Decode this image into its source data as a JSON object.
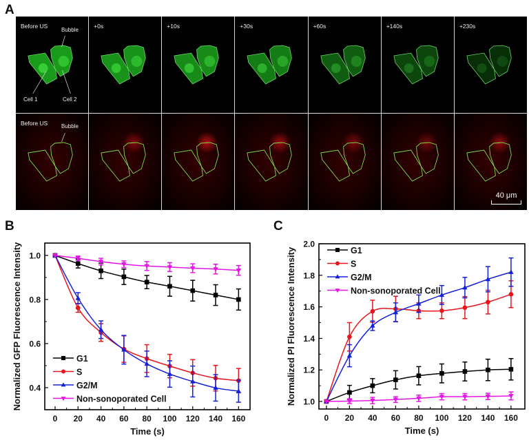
{
  "panel_a": {
    "letter": "A",
    "time_labels": [
      "Before US",
      "+0s",
      "+10s",
      "+30s",
      "+60s",
      "+140s",
      "+230s"
    ],
    "row2_first_label": "Before US",
    "annotations": {
      "bubble": "Bubble",
      "cell1": "Cell 1",
      "cell2": "Cell 2"
    },
    "scale_bar": "40 μm",
    "colors": {
      "gfp": "#22c022",
      "pi": "#c01010",
      "outline": "#7fdc4a"
    }
  },
  "chart_data": [
    {
      "panel": "B",
      "type": "line",
      "title": "",
      "xlabel": "Time (s)",
      "ylabel": "Normalized GFP Fluorescence Intensity",
      "x": [
        0,
        20,
        40,
        60,
        80,
        100,
        120,
        140,
        160
      ],
      "xticks": [
        "0",
        "20",
        "40",
        "60",
        "80",
        "100",
        "120",
        "140",
        "160"
      ],
      "yticks": [
        "0.4",
        "0.6",
        "0.8",
        "1.0"
      ],
      "xlim": [
        -9,
        170
      ],
      "ylim": [
        0.3,
        1.056
      ],
      "legend": "bottom-left",
      "grid": false,
      "series": [
        {
          "name": "G1",
          "color": "#000000",
          "marker": "square",
          "values": [
            1.0,
            0.963,
            0.93,
            0.903,
            0.879,
            0.86,
            0.84,
            0.82,
            0.8
          ],
          "errors": [
            0,
            0.02,
            0.035,
            0.035,
            0.03,
            0.045,
            0.047,
            0.047,
            0.048
          ]
        },
        {
          "name": "S",
          "color": "#e8141c",
          "marker": "circle",
          "values": [
            1.0,
            0.762,
            0.65,
            0.575,
            0.532,
            0.498,
            0.467,
            0.443,
            0.432
          ],
          "errors": [
            0,
            0.02,
            0.04,
            0.06,
            0.063,
            0.053,
            0.06,
            0.058,
            0.055
          ]
        },
        {
          "name": "G2/M",
          "color": "#1420d8",
          "marker": "triangle-up",
          "values": [
            1.0,
            0.806,
            0.663,
            0.572,
            0.508,
            0.462,
            0.428,
            0.399,
            0.384
          ],
          "errors": [
            0,
            0.025,
            0.04,
            0.065,
            0.058,
            0.06,
            0.07,
            0.06,
            0.05
          ]
        },
        {
          "name": "Non-sonoporated Cell",
          "color": "#e414e4",
          "marker": "triangle-down",
          "values": [
            1.0,
            0.987,
            0.972,
            0.96,
            0.952,
            0.947,
            0.942,
            0.938,
            0.932
          ],
          "errors": [
            0,
            0.01,
            0.015,
            0.015,
            0.02,
            0.02,
            0.02,
            0.022,
            0.022
          ]
        }
      ]
    },
    {
      "panel": "C",
      "type": "line",
      "title": "",
      "xlabel": "Time (s)",
      "ylabel": "Normalized PI Fluorescence Intensity",
      "x": [
        0,
        20,
        40,
        60,
        80,
        100,
        120,
        140,
        160
      ],
      "xticks": [
        "0",
        "20",
        "40",
        "60",
        "80",
        "100",
        "120",
        "140",
        "160"
      ],
      "yticks": [
        "1.0",
        "1.2",
        "1.4",
        "1.6",
        "1.8",
        "2.0"
      ],
      "xlim": [
        -6.5,
        172
      ],
      "ylim": [
        0.952,
        2.0
      ],
      "legend": "top-left",
      "grid": false,
      "series": [
        {
          "name": "G1",
          "color": "#000000",
          "marker": "square",
          "values": [
            1.0,
            1.057,
            1.1,
            1.137,
            1.163,
            1.178,
            1.19,
            1.2,
            1.204
          ],
          "errors": [
            0,
            0.045,
            0.045,
            0.058,
            0.058,
            0.06,
            0.06,
            0.068,
            0.068
          ]
        },
        {
          "name": "S",
          "color": "#e8141c",
          "marker": "circle",
          "values": [
            1.0,
            1.41,
            1.572,
            1.587,
            1.575,
            1.575,
            1.595,
            1.63,
            1.68
          ],
          "errors": [
            0,
            0.09,
            0.07,
            0.08,
            0.05,
            0.05,
            0.07,
            0.075,
            0.085
          ]
        },
        {
          "name": "G2/M",
          "color": "#1420d8",
          "marker": "triangle-up",
          "values": [
            1.0,
            1.29,
            1.48,
            1.565,
            1.62,
            1.675,
            1.722,
            1.775,
            1.82
          ],
          "errors": [
            0,
            0.07,
            0.03,
            0.06,
            0.055,
            0.06,
            0.065,
            0.08,
            0.09
          ]
        },
        {
          "name": "Non-sonoporated Cell",
          "color": "#e414e4",
          "marker": "triangle-down",
          "values": [
            1.0,
            1.002,
            1.006,
            1.012,
            1.02,
            1.03,
            1.03,
            1.032,
            1.035
          ],
          "errors": [
            0,
            0.015,
            0.02,
            0.018,
            0.02,
            0.02,
            0.02,
            0.02,
            0.025
          ]
        }
      ]
    }
  ]
}
